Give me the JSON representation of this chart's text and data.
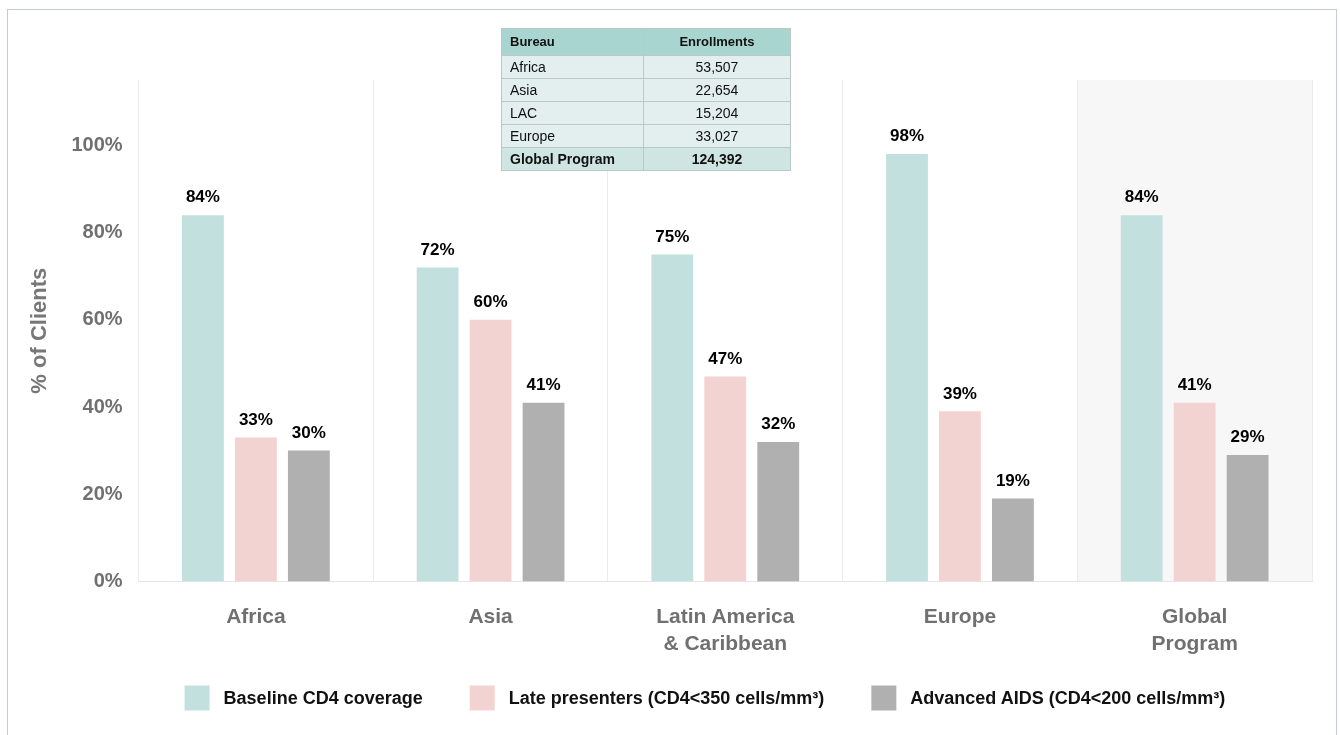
{
  "chart_data": {
    "type": "bar",
    "ylabel": "% of Clients",
    "categories": [
      "Africa",
      "Asia",
      "Latin America & Caribbean",
      "Europe",
      "Global Program"
    ],
    "series": [
      {
        "name": "Baseline CD4 coverage",
        "color": "#c2e1de",
        "values": [
          84,
          72,
          75,
          98,
          84
        ],
        "value_labels": [
          "84%",
          "72%",
          "75%",
          "98%",
          "84%"
        ]
      },
      {
        "name": "Late presenters (CD4<350 cells/mm³)",
        "color": "#f2d3d1",
        "values": [
          33,
          60,
          47,
          39,
          41
        ],
        "value_labels": [
          "33%",
          "60%",
          "47%",
          "39%",
          "41%"
        ]
      },
      {
        "name": "Advanced AIDS (CD4<200 cells/mm³)",
        "color": "#b0b0b0",
        "values": [
          30,
          41,
          32,
          19,
          29
        ],
        "value_labels": [
          "30%",
          "41%",
          "32%",
          "19%",
          "29%"
        ]
      }
    ],
    "ylim": [
      0,
      115
    ],
    "yticks": [
      {
        "value": 0,
        "label": "0%"
      },
      {
        "value": 20,
        "label": "20%"
      },
      {
        "value": 40,
        "label": "40%"
      },
      {
        "value": 60,
        "label": "60%"
      },
      {
        "value": 80,
        "label": "80%"
      },
      {
        "value": 100,
        "label": "100%"
      }
    ],
    "grid": "x",
    "legend": "bottom",
    "bands": [
      {
        "axis": "x",
        "from": "Global Program",
        "to": "Global Program",
        "color": "#f7f7f7"
      }
    ],
    "annotations": [
      "Bureau",
      "Enrollments",
      "Africa",
      "53,507",
      "Asia",
      "22,654",
      "LAC",
      "15,204",
      "Europe",
      "33,027",
      "Global Program",
      "124,392"
    ]
  }
}
